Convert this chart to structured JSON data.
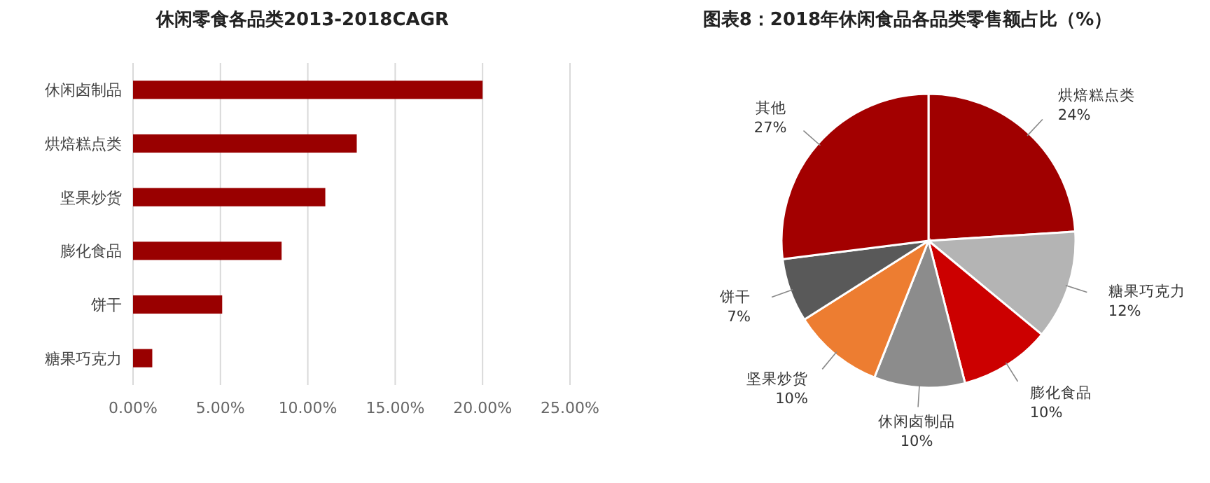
{
  "chart_data": [
    {
      "type": "bar",
      "orientation": "horizontal",
      "title": "休闲零食各品类2013-2018CAGR",
      "categories": [
        "休闲卤制品",
        "烘焙糕点类",
        "坚果炒货",
        "膨化食品",
        "饼干",
        "糖果巧克力"
      ],
      "values": [
        20.0,
        12.8,
        11.0,
        8.5,
        5.1,
        1.1
      ],
      "color": "#990000",
      "xlim": [
        0,
        25
      ],
      "xticks": [
        {
          "value": 0,
          "label": "0.00%"
        },
        {
          "value": 5,
          "label": "5.00%"
        },
        {
          "value": 10,
          "label": "10.00%"
        },
        {
          "value": 15,
          "label": "15.00%"
        },
        {
          "value": 20,
          "label": "20.00%"
        },
        {
          "value": 25,
          "label": "25.00%"
        }
      ],
      "grid": "x"
    },
    {
      "type": "pie",
      "title": "图表8：2018年休闲食品各品类零售额占比（%）",
      "categories": [
        "烘焙糕点类",
        "糖果巧克力",
        "膨化食品",
        "休闲卤制品",
        "坚果炒货",
        "饼干",
        "其他"
      ],
      "values": [
        24,
        12,
        10,
        10,
        10,
        7,
        27
      ],
      "colors": [
        "#a00000",
        "#b4b4b4",
        "#cc0000",
        "#8c8c8c",
        "#ed7d31",
        "#595959",
        "#a30000"
      ],
      "value_labels": [
        "24%",
        "12%",
        "10%",
        "10%",
        "10%",
        "7%",
        "27%"
      ]
    }
  ]
}
